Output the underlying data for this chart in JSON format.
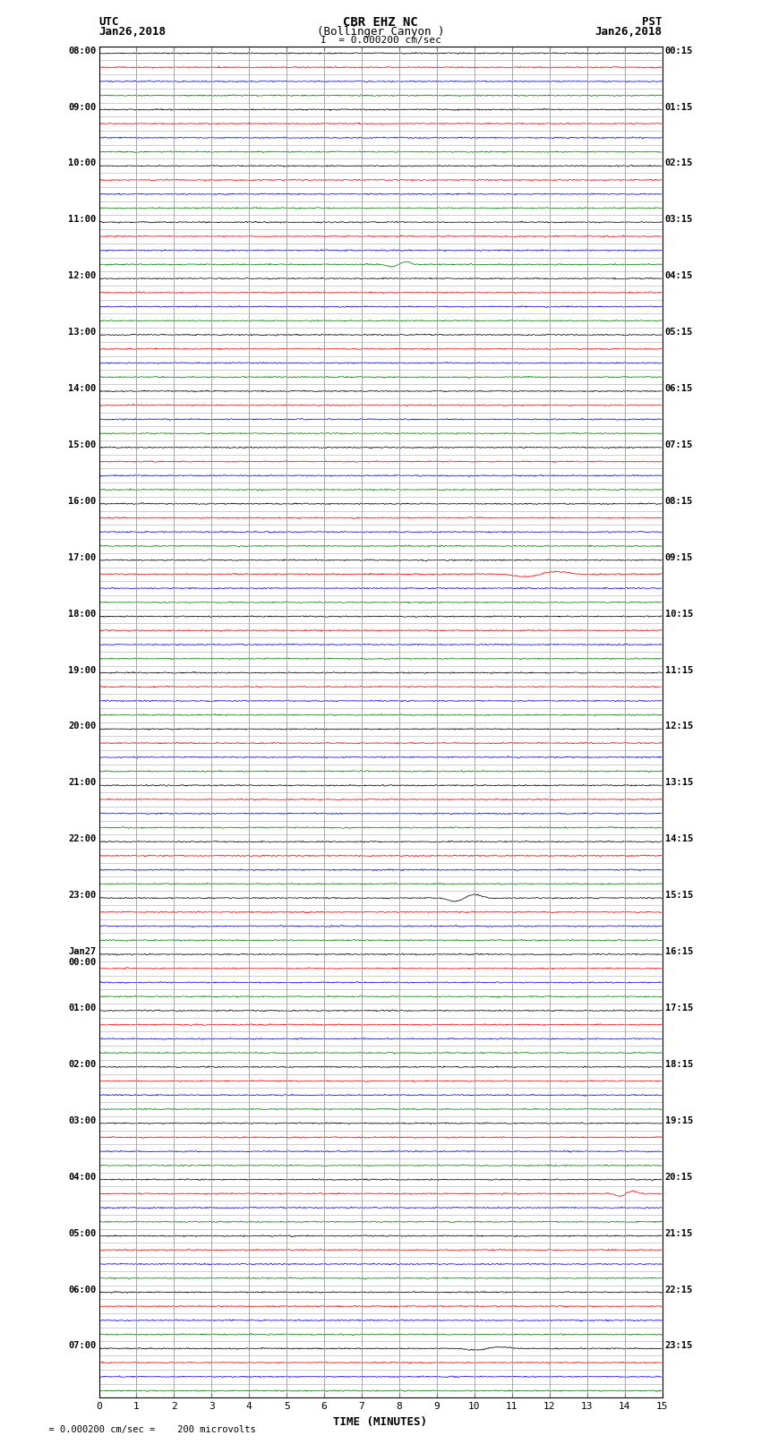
{
  "title_line1": "CBR EHZ NC",
  "title_line2": "(Bollinger Canyon )",
  "title_scale": "I  = 0.000200 cm/sec",
  "label_left_top": "UTC",
  "label_left_date": "Jan26,2018",
  "label_right_top": "PST",
  "label_right_date": "Jan26,2018",
  "xlabel": "TIME (MINUTES)",
  "bottom_note": "  = 0.000200 cm/sec =    200 microvolts",
  "utc_times_labeled": [
    "08:00",
    "09:00",
    "10:00",
    "11:00",
    "12:00",
    "13:00",
    "14:00",
    "15:00",
    "16:00",
    "17:00",
    "18:00",
    "19:00",
    "20:00",
    "21:00",
    "22:00",
    "23:00",
    "Jan27\n00:00",
    "01:00",
    "02:00",
    "03:00",
    "04:00",
    "05:00",
    "06:00",
    "07:00"
  ],
  "pst_times_labeled": [
    "00:15",
    "01:15",
    "02:15",
    "03:15",
    "04:15",
    "05:15",
    "06:15",
    "07:15",
    "08:15",
    "09:15",
    "10:15",
    "11:15",
    "12:15",
    "13:15",
    "14:15",
    "15:15",
    "16:15",
    "17:15",
    "18:15",
    "19:15",
    "20:15",
    "21:15",
    "22:15",
    "23:15"
  ],
  "num_hours": 24,
  "traces_per_hour": 4,
  "colors": [
    "black",
    "red",
    "blue",
    "green"
  ],
  "bg_color": "white",
  "noise_amplitude": 0.12,
  "xmin": 0,
  "xmax": 15,
  "xticks": [
    0,
    1,
    2,
    3,
    4,
    5,
    6,
    7,
    8,
    9,
    10,
    11,
    12,
    13,
    14,
    15
  ],
  "vline_color": "#999999",
  "vline_lw": 0.6,
  "hline_color": "#aaaaaa",
  "hline_lw": 0.4,
  "trace_lw": 0.5,
  "seed": 42,
  "n_pts": 1800
}
